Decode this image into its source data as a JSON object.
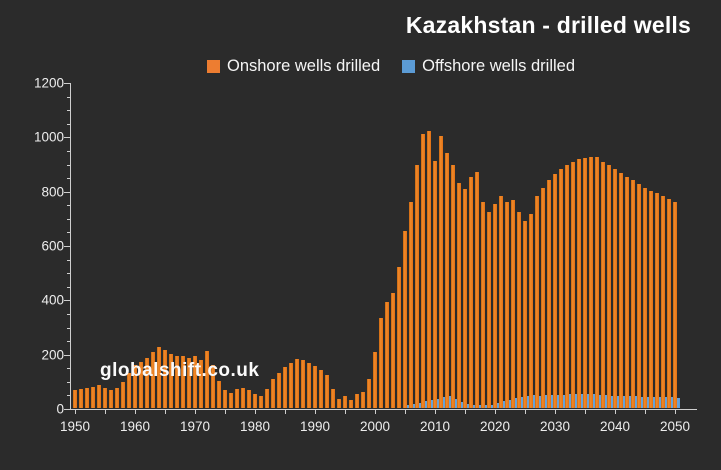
{
  "title": "Kazakhstan - drilled wells",
  "watermark": "globalshift.co.uk",
  "colors": {
    "background": "#2b2b2b",
    "onshore": "#ED7D31",
    "offshore": "#5B9BD5",
    "text": "#F0F0F0",
    "axis": "#CFCFCF"
  },
  "legend": {
    "onshore_label": "Onshore wells drilled",
    "offshore_label": "Offshore wells drilled"
  },
  "chart_data": {
    "type": "bar",
    "title": "Kazakhstan - drilled wells",
    "xlabel": "",
    "ylabel": "",
    "ylim": [
      0,
      1200
    ],
    "y_ticks": [
      0,
      200,
      400,
      600,
      800,
      1000,
      1200
    ],
    "y_minor_tick_step": 50,
    "x_start": 1950,
    "x_end": 2050,
    "x_tick_labels": [
      "1950",
      "1960",
      "1970",
      "1980",
      "1990",
      "2000",
      "2010",
      "2020",
      "2030",
      "2040",
      "2050"
    ],
    "x_minor_tick_step_years": 5,
    "grid": false,
    "legend_position": "top",
    "series": [
      {
        "name": "Onshore wells drilled",
        "color": "#ED7D31",
        "values": [
          65,
          70,
          72,
          78,
          85,
          72,
          68,
          72,
          95,
          130,
          160,
          170,
          185,
          205,
          225,
          215,
          200,
          190,
          190,
          185,
          190,
          175,
          210,
          160,
          100,
          65,
          55,
          70,
          75,
          65,
          50,
          45,
          70,
          105,
          130,
          150,
          165,
          180,
          175,
          165,
          155,
          140,
          120,
          70,
          35,
          45,
          30,
          50,
          60,
          105,
          205,
          330,
          390,
          425,
          520,
          650,
          760,
          895,
          1010,
          1020,
          910,
          1000,
          940,
          895,
          830,
          805,
          850,
          870,
          760,
          720,
          750,
          780,
          760,
          765,
          720,
          690,
          715,
          780,
          810,
          840,
          860,
          880,
          895,
          905,
          915,
          920,
          925,
          925,
          905,
          893,
          880,
          865,
          850,
          838,
          824,
          810,
          800,
          790,
          780,
          768,
          758
        ]
      },
      {
        "name": "Offshore wells drilled",
        "color": "#5B9BD5",
        "values": [
          0,
          0,
          0,
          0,
          0,
          0,
          0,
          0,
          0,
          0,
          0,
          0,
          0,
          0,
          0,
          0,
          0,
          0,
          0,
          0,
          0,
          0,
          0,
          0,
          0,
          0,
          0,
          0,
          0,
          0,
          0,
          0,
          0,
          0,
          0,
          0,
          0,
          0,
          0,
          0,
          0,
          0,
          0,
          0,
          0,
          0,
          0,
          0,
          0,
          0,
          0,
          0,
          0,
          0,
          0,
          10,
          15,
          20,
          25,
          30,
          35,
          40,
          43,
          33,
          23,
          15,
          10,
          10,
          10,
          12,
          20,
          25,
          28,
          38,
          42,
          45,
          47,
          45,
          47,
          48,
          48,
          49,
          50,
          50,
          50,
          50,
          50,
          48,
          47,
          46,
          45,
          44,
          44,
          43,
          42,
          42,
          41,
          40,
          40,
          39,
          38
        ]
      }
    ]
  }
}
